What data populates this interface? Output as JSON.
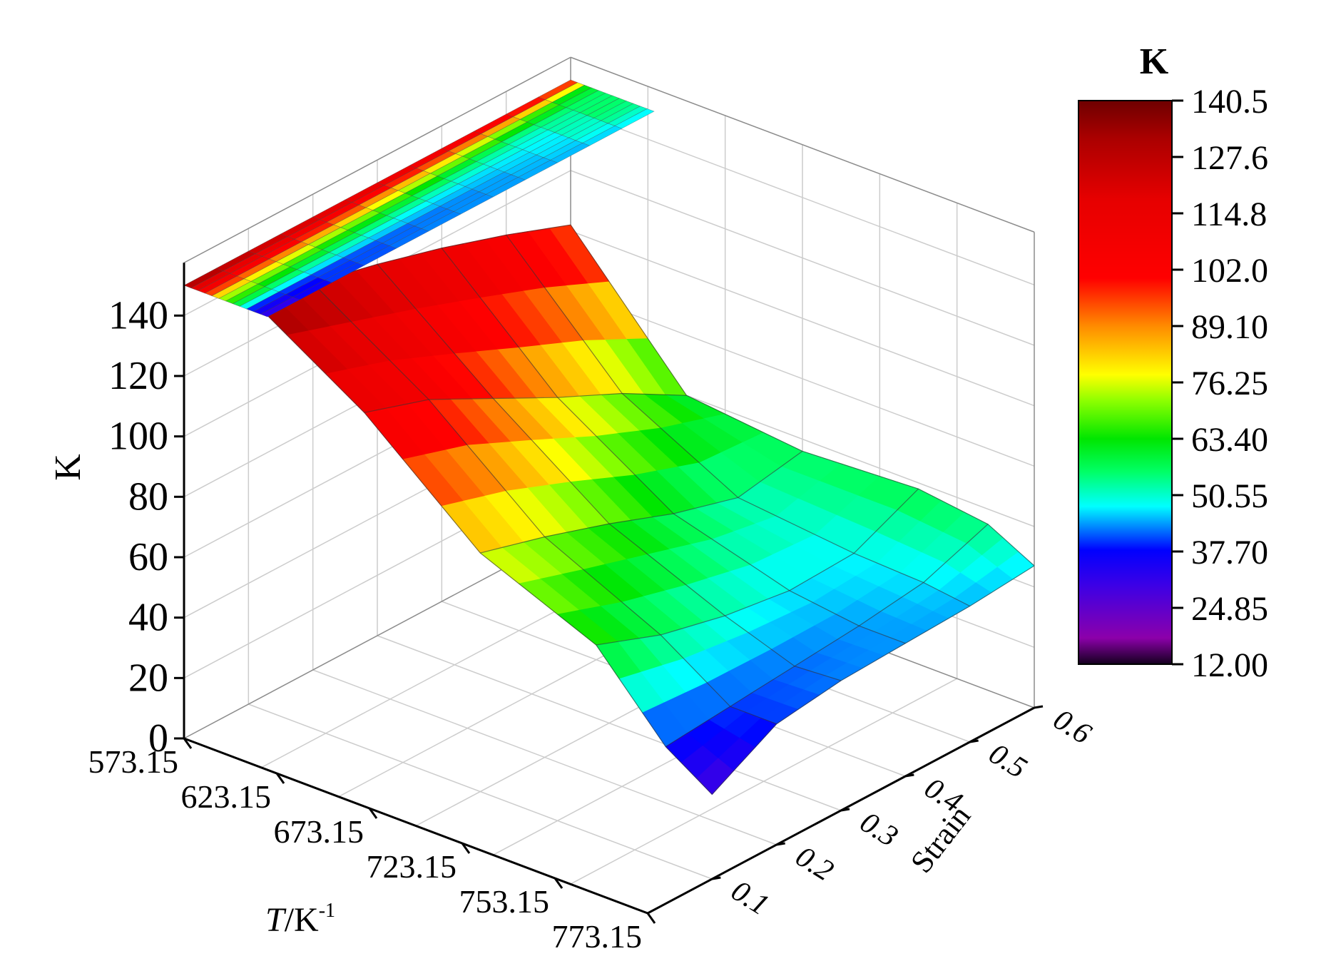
{
  "chart_data": {
    "type": "surface3d",
    "zlabel": "K",
    "xlabel_italic": "T",
    "xlabel_rest": "/K",
    "xlabel_sup": "-1",
    "ylabel": "Strain",
    "x_ticks": [
      "573.15",
      "623.15",
      "673.15",
      "723.15",
      "753.15",
      "773.15"
    ],
    "y_ticks": [
      "0.1",
      "0.2",
      "0.3",
      "0.4",
      "0.5",
      "0.6"
    ],
    "z_ticks": [
      "0",
      "20",
      "40",
      "60",
      "80",
      "100",
      "120",
      "140"
    ],
    "zlim": [
      0,
      150
    ],
    "grid": true,
    "colorbar": {
      "title": "K",
      "min": 12.0,
      "max": 140.5,
      "tick_labels": [
        "140.5",
        "127.6",
        "114.8",
        "102.0",
        "89.10",
        "76.25",
        "63.40",
        "50.55",
        "37.70",
        "24.85",
        "12.00"
      ],
      "colors": [
        "#000000",
        "#8a00a8",
        "#0000ff",
        "#00ffff",
        "#00ff00",
        "#ffff00",
        "#ff9900",
        "#ff0000",
        "#e00000",
        "#8b0000"
      ]
    },
    "temperatures": [
      573.15,
      623.15,
      673.15,
      723.15,
      753.15,
      773.15
    ],
    "strains": [
      0.1,
      0.2,
      0.3,
      0.4,
      0.5,
      0.6
    ],
    "K_values": [
      [
        28,
        40,
        43,
        44,
        45,
        47
      ],
      [
        38,
        40,
        42,
        44,
        47,
        55
      ],
      [
        63,
        55,
        50,
        47,
        48,
        58
      ],
      [
        79,
        73,
        66,
        58,
        52,
        56
      ],
      [
        111,
        104,
        93,
        82,
        72,
        60
      ],
      [
        135,
        128,
        123,
        117,
        110,
        102
      ]
    ],
    "top_plane": {
      "K_range": [
        140.5,
        50
      ],
      "description_values": []
    }
  }
}
